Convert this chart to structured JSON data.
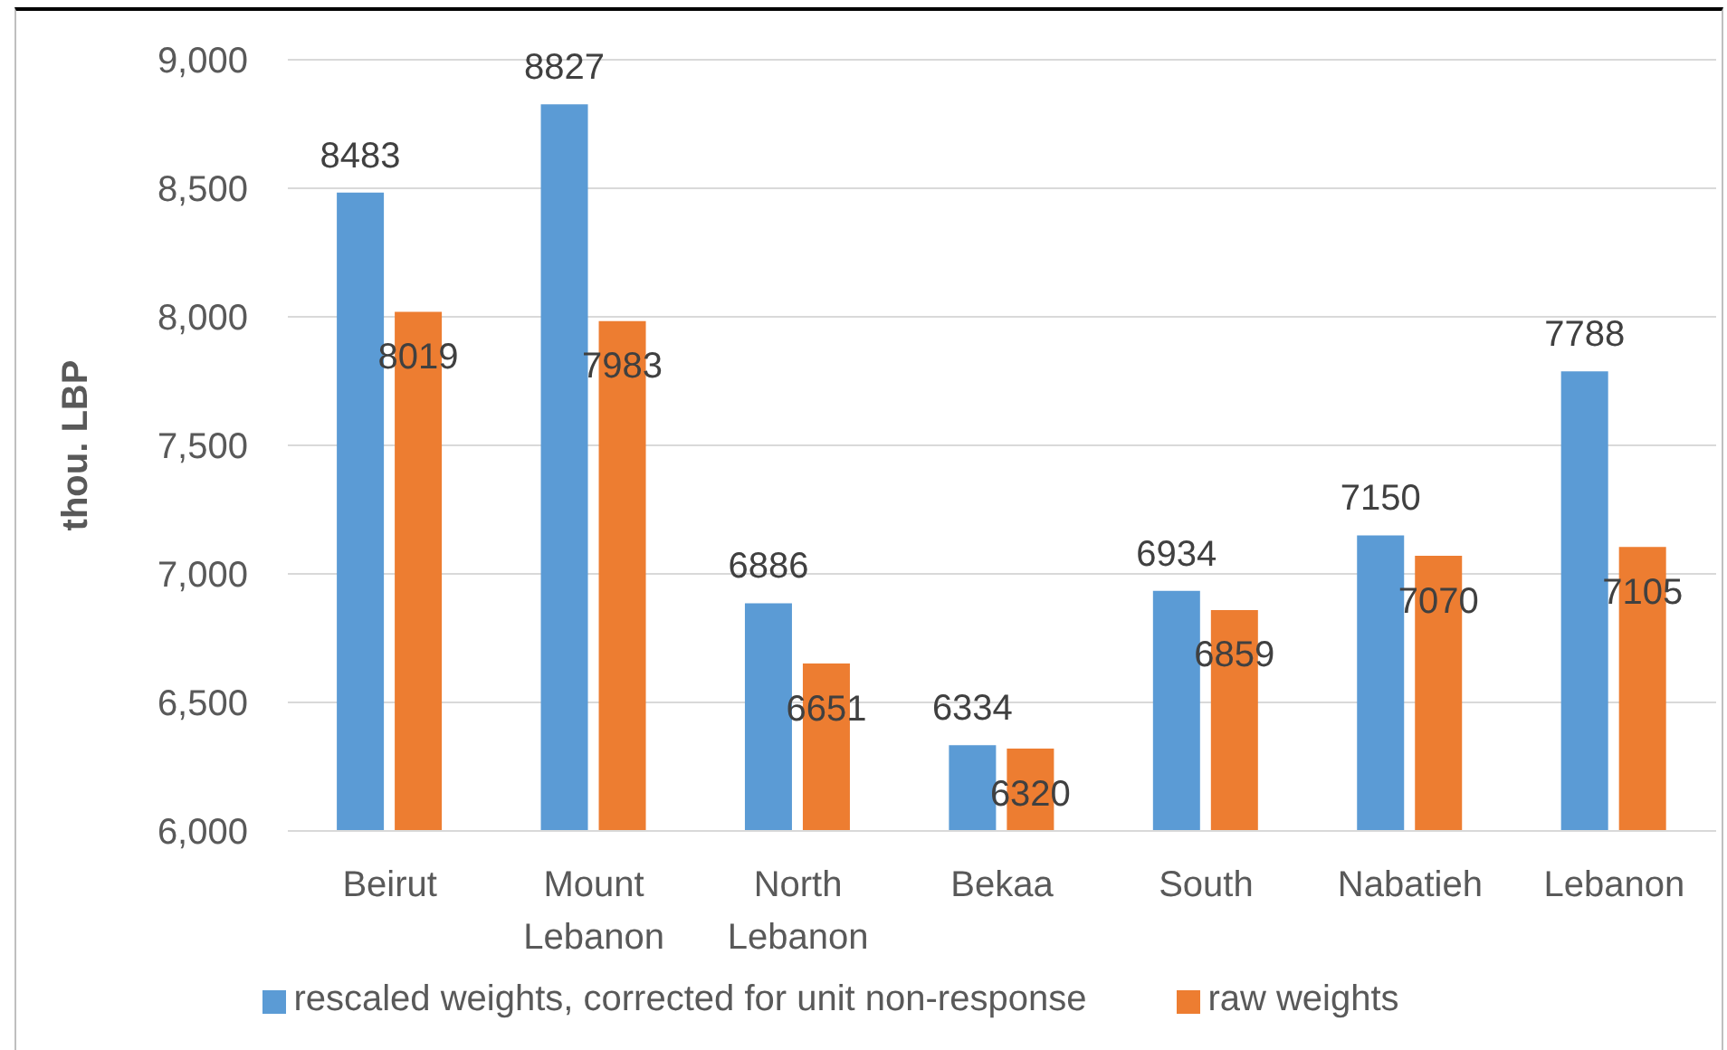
{
  "chart_data": {
    "type": "bar",
    "ylabel": "thou. LBP",
    "categories": [
      "Beirut",
      "Mount Lebanon",
      "North Lebanon",
      "Bekaa",
      "South",
      "Nabatieh",
      "Lebanon"
    ],
    "series": [
      {
        "name": "rescaled weights, corrected for unit non-response",
        "color": "#5b9bd5",
        "values": [
          8483,
          8827,
          6886,
          6334,
          6934,
          7150,
          7788
        ]
      },
      {
        "name": "raw weights",
        "color": "#ed7d31",
        "values": [
          8019,
          7983,
          6651,
          6320,
          6859,
          7070,
          7105
        ]
      }
    ],
    "ylim": [
      6000,
      9000
    ],
    "yticks": [
      {
        "value": 6000,
        "label": "6,000"
      },
      {
        "value": 6500,
        "label": "6,500"
      },
      {
        "value": 7000,
        "label": "7,000"
      },
      {
        "value": 7500,
        "label": "7,500"
      },
      {
        "value": 8000,
        "label": "8,000"
      },
      {
        "value": 8500,
        "label": "8,500"
      },
      {
        "value": 9000,
        "label": "9,000"
      }
    ],
    "grid": "y",
    "legend": "bottom",
    "data_labels": true
  }
}
